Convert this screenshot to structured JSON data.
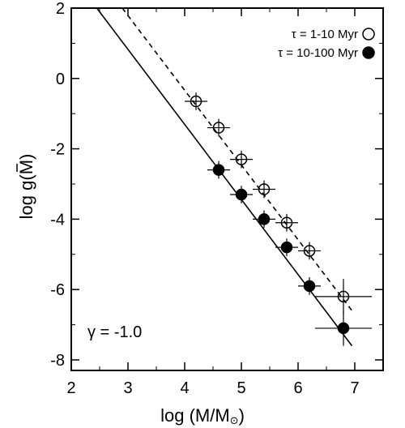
{
  "chart_data": {
    "type": "scatter",
    "title": "",
    "xlabel": "log (M/M",
    "xlabel_sub": "⊙",
    "xlabel_close": ")",
    "ylabel": "log g(M)",
    "xlim": [
      2,
      7.5
    ],
    "ylim": [
      -8.3,
      2
    ],
    "x_ticks": [
      2,
      3,
      4,
      5,
      6,
      7
    ],
    "y_ticks": [
      2,
      0,
      -2,
      -4,
      -6,
      -8
    ],
    "x_tick_labels": [
      "2",
      "3",
      "4",
      "5",
      "6",
      "7"
    ],
    "y_tick_labels": [
      "2",
      "0",
      "-2",
      "-4",
      "-6",
      "-8"
    ],
    "grid": false,
    "legend_position": "top-right",
    "series": [
      {
        "name": "τ = 1-10 Myr",
        "marker": "open-circle",
        "x": [
          4.2,
          4.6,
          5.0,
          5.4,
          5.8,
          6.2,
          6.8
        ],
        "y": [
          -0.65,
          -1.4,
          -2.3,
          -3.15,
          -4.1,
          -4.9,
          -6.2
        ],
        "x_err": [
          0.2,
          0.2,
          0.2,
          0.2,
          0.2,
          0.2,
          0.5
        ],
        "y_err": [
          0.25,
          0.25,
          0.25,
          0.25,
          0.25,
          0.25,
          0.5
        ]
      },
      {
        "name": "τ = 10-100 Myr",
        "marker": "filled-circle",
        "x": [
          4.6,
          5.0,
          5.4,
          5.8,
          6.2,
          6.8
        ],
        "y": [
          -2.6,
          -3.3,
          -4.0,
          -4.8,
          -5.9,
          -7.1
        ],
        "x_err": [
          0.2,
          0.2,
          0.2,
          0.2,
          0.2,
          0.5
        ],
        "y_err": [
          0.25,
          0.25,
          0.25,
          0.25,
          0.25,
          0.5
        ]
      }
    ],
    "fit_lines": [
      {
        "style": "dashed",
        "x": [
          2.9,
          6.95
        ],
        "y": [
          2.0,
          -6.6
        ]
      },
      {
        "style": "solid",
        "x": [
          2.45,
          6.95
        ],
        "y": [
          2.0,
          -7.6
        ]
      }
    ],
    "annotation": "γ = -1.0"
  }
}
